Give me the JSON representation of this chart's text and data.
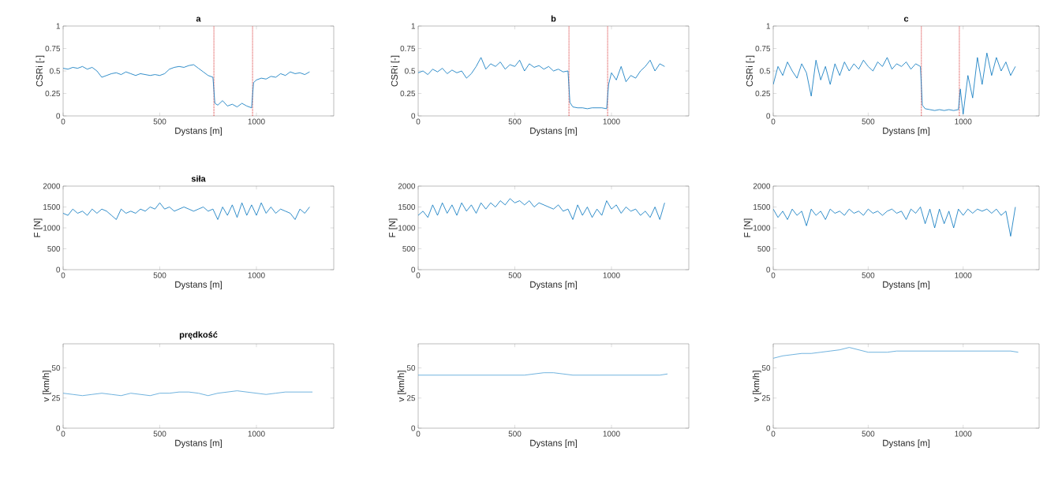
{
  "chart_data": [
    {
      "type": "line",
      "title": "a",
      "xlabel": "Dystans [m]",
      "ylabel": "CSRi [-]",
      "xlim": [
        0,
        1400
      ],
      "ylim": [
        0,
        1
      ],
      "xticks": [
        0,
        500,
        1000
      ],
      "yticks": [
        0,
        0.25,
        0.5,
        0.75,
        1
      ],
      "x": [
        0,
        25,
        50,
        75,
        100,
        125,
        150,
        175,
        200,
        225,
        250,
        275,
        300,
        325,
        350,
        375,
        400,
        425,
        450,
        475,
        500,
        525,
        550,
        575,
        600,
        625,
        650,
        675,
        700,
        725,
        750,
        775,
        785,
        800,
        825,
        850,
        875,
        900,
        925,
        950,
        975,
        985,
        1000,
        1025,
        1050,
        1075,
        1100,
        1125,
        1150,
        1175,
        1200,
        1225,
        1250,
        1275
      ],
      "series": [
        {
          "color": "#0072bd",
          "values": [
            0.53,
            0.52,
            0.54,
            0.53,
            0.55,
            0.52,
            0.54,
            0.5,
            0.43,
            0.45,
            0.47,
            0.48,
            0.46,
            0.49,
            0.47,
            0.45,
            0.47,
            0.46,
            0.45,
            0.46,
            0.45,
            0.47,
            0.52,
            0.54,
            0.55,
            0.54,
            0.56,
            0.57,
            0.53,
            0.49,
            0.45,
            0.43,
            0.14,
            0.12,
            0.17,
            0.11,
            0.13,
            0.1,
            0.14,
            0.11,
            0.09,
            0.37,
            0.4,
            0.42,
            0.41,
            0.44,
            0.43,
            0.47,
            0.45,
            0.49,
            0.47,
            0.48,
            0.46,
            0.49
          ]
        }
      ],
      "ref_lines": [
        {
          "axis": "x",
          "value": 780,
          "color": "#d62728",
          "line_style": "dotted"
        },
        {
          "axis": "x",
          "value": 980,
          "color": "#d62728",
          "line_style": "dotted"
        }
      ]
    },
    {
      "type": "line",
      "title": "b",
      "xlabel": "Dystans [m]",
      "ylabel": "CSRi [-]",
      "xlim": [
        0,
        1400
      ],
      "ylim": [
        0,
        1
      ],
      "xticks": [
        0,
        500,
        1000
      ],
      "yticks": [
        0,
        0.25,
        0.5,
        0.75,
        1
      ],
      "x": [
        0,
        25,
        50,
        75,
        100,
        125,
        150,
        175,
        200,
        225,
        250,
        275,
        300,
        325,
        350,
        375,
        400,
        425,
        450,
        475,
        500,
        525,
        550,
        575,
        600,
        625,
        650,
        675,
        700,
        725,
        750,
        775,
        785,
        800,
        825,
        850,
        875,
        900,
        925,
        950,
        975,
        985,
        1000,
        1025,
        1050,
        1075,
        1100,
        1125,
        1150,
        1175,
        1200,
        1225,
        1250,
        1275
      ],
      "series": [
        {
          "color": "#0072bd",
          "values": [
            0.48,
            0.5,
            0.46,
            0.52,
            0.49,
            0.53,
            0.47,
            0.51,
            0.48,
            0.5,
            0.42,
            0.47,
            0.55,
            0.65,
            0.52,
            0.58,
            0.55,
            0.6,
            0.52,
            0.57,
            0.55,
            0.62,
            0.5,
            0.58,
            0.54,
            0.56,
            0.52,
            0.55,
            0.5,
            0.52,
            0.49,
            0.5,
            0.15,
            0.1,
            0.09,
            0.09,
            0.08,
            0.09,
            0.09,
            0.09,
            0.08,
            0.35,
            0.48,
            0.4,
            0.55,
            0.38,
            0.45,
            0.42,
            0.5,
            0.55,
            0.62,
            0.5,
            0.58,
            0.55
          ]
        }
      ],
      "ref_lines": [
        {
          "axis": "x",
          "value": 780,
          "color": "#d62728",
          "line_style": "dotted"
        },
        {
          "axis": "x",
          "value": 980,
          "color": "#d62728",
          "line_style": "dotted"
        }
      ]
    },
    {
      "type": "line",
      "title": "c",
      "xlabel": "Dystans [m]",
      "ylabel": "CSRi [-]",
      "xlim": [
        0,
        1400
      ],
      "ylim": [
        0,
        1
      ],
      "xticks": [
        0,
        500,
        1000
      ],
      "yticks": [
        0,
        0.25,
        0.5,
        0.75,
        1
      ],
      "x": [
        0,
        25,
        50,
        75,
        100,
        125,
        150,
        175,
        200,
        225,
        250,
        275,
        300,
        325,
        350,
        375,
        400,
        425,
        450,
        475,
        500,
        525,
        550,
        575,
        600,
        625,
        650,
        675,
        700,
        725,
        750,
        775,
        785,
        800,
        825,
        850,
        875,
        900,
        925,
        950,
        975,
        985,
        1000,
        1025,
        1050,
        1075,
        1100,
        1125,
        1150,
        1175,
        1200,
        1225,
        1250,
        1275
      ],
      "series": [
        {
          "color": "#0072bd",
          "values": [
            0.35,
            0.55,
            0.45,
            0.6,
            0.5,
            0.42,
            0.58,
            0.48,
            0.22,
            0.62,
            0.4,
            0.55,
            0.35,
            0.58,
            0.45,
            0.6,
            0.5,
            0.58,
            0.52,
            0.62,
            0.55,
            0.5,
            0.6,
            0.55,
            0.65,
            0.52,
            0.58,
            0.55,
            0.6,
            0.52,
            0.58,
            0.55,
            0.12,
            0.08,
            0.07,
            0.06,
            0.07,
            0.06,
            0.07,
            0.06,
            0.07,
            0.3,
            0.02,
            0.45,
            0.2,
            0.65,
            0.35,
            0.7,
            0.45,
            0.65,
            0.5,
            0.6,
            0.45,
            0.55
          ]
        }
      ],
      "ref_lines": [
        {
          "axis": "x",
          "value": 780,
          "color": "#d62728",
          "line_style": "dotted"
        },
        {
          "axis": "x",
          "value": 980,
          "color": "#d62728",
          "line_style": "dotted"
        }
      ]
    },
    {
      "type": "line",
      "title": "siła",
      "xlabel": "Dystans [m]",
      "ylabel": "F [N]",
      "xlim": [
        0,
        1400
      ],
      "ylim": [
        0,
        2000
      ],
      "xticks": [
        0,
        500,
        1000
      ],
      "yticks": [
        0,
        500,
        1000,
        1500,
        2000
      ],
      "x": [
        0,
        25,
        50,
        75,
        100,
        125,
        150,
        175,
        200,
        225,
        250,
        275,
        300,
        325,
        350,
        375,
        400,
        425,
        450,
        475,
        500,
        525,
        550,
        575,
        600,
        625,
        650,
        675,
        700,
        725,
        750,
        775,
        800,
        825,
        850,
        875,
        900,
        925,
        950,
        975,
        1000,
        1025,
        1050,
        1075,
        1100,
        1125,
        1150,
        1175,
        1200,
        1225,
        1250,
        1275
      ],
      "series": [
        {
          "color": "#0072bd",
          "values": [
            1350,
            1300,
            1450,
            1350,
            1400,
            1300,
            1450,
            1350,
            1450,
            1400,
            1300,
            1200,
            1450,
            1350,
            1400,
            1350,
            1450,
            1400,
            1500,
            1450,
            1600,
            1450,
            1500,
            1400,
            1450,
            1500,
            1450,
            1400,
            1450,
            1500,
            1400,
            1450,
            1200,
            1500,
            1300,
            1550,
            1250,
            1600,
            1300,
            1550,
            1300,
            1600,
            1350,
            1500,
            1350,
            1450,
            1400,
            1350,
            1200,
            1450,
            1350,
            1500
          ]
        }
      ]
    },
    {
      "type": "line",
      "xlabel": "Dystans [m]",
      "ylabel": "F [N]",
      "xlim": [
        0,
        1400
      ],
      "ylim": [
        0,
        2000
      ],
      "xticks": [
        0,
        500,
        1000
      ],
      "yticks": [
        0,
        500,
        1000,
        1500,
        2000
      ],
      "x": [
        0,
        25,
        50,
        75,
        100,
        125,
        150,
        175,
        200,
        225,
        250,
        275,
        300,
        325,
        350,
        375,
        400,
        425,
        450,
        475,
        500,
        525,
        550,
        575,
        600,
        625,
        650,
        675,
        700,
        725,
        750,
        775,
        800,
        825,
        850,
        875,
        900,
        925,
        950,
        975,
        1000,
        1025,
        1050,
        1075,
        1100,
        1125,
        1150,
        1175,
        1200,
        1225,
        1250,
        1275
      ],
      "series": [
        {
          "color": "#0072bd",
          "values": [
            1300,
            1400,
            1250,
            1550,
            1300,
            1600,
            1350,
            1550,
            1300,
            1600,
            1400,
            1550,
            1350,
            1600,
            1450,
            1600,
            1500,
            1650,
            1550,
            1700,
            1600,
            1650,
            1550,
            1650,
            1500,
            1600,
            1550,
            1500,
            1450,
            1550,
            1400,
            1450,
            1200,
            1550,
            1300,
            1500,
            1250,
            1450,
            1300,
            1650,
            1450,
            1550,
            1350,
            1500,
            1400,
            1450,
            1300,
            1400,
            1250,
            1500,
            1200,
            1600
          ]
        }
      ]
    },
    {
      "type": "line",
      "xlabel": "Dystans [m]",
      "ylabel": "F [N]",
      "xlim": [
        0,
        1400
      ],
      "ylim": [
        0,
        2000
      ],
      "xticks": [
        0,
        500,
        1000
      ],
      "yticks": [
        0,
        500,
        1000,
        1500,
        2000
      ],
      "x": [
        0,
        25,
        50,
        75,
        100,
        125,
        150,
        175,
        200,
        225,
        250,
        275,
        300,
        325,
        350,
        375,
        400,
        425,
        450,
        475,
        500,
        525,
        550,
        575,
        600,
        625,
        650,
        675,
        700,
        725,
        750,
        775,
        800,
        825,
        850,
        875,
        900,
        925,
        950,
        975,
        1000,
        1025,
        1050,
        1075,
        1100,
        1125,
        1150,
        1175,
        1200,
        1225,
        1250,
        1275
      ],
      "series": [
        {
          "color": "#0072bd",
          "values": [
            1450,
            1250,
            1400,
            1200,
            1450,
            1300,
            1400,
            1050,
            1450,
            1300,
            1400,
            1200,
            1450,
            1350,
            1400,
            1300,
            1450,
            1350,
            1400,
            1300,
            1450,
            1350,
            1400,
            1300,
            1400,
            1450,
            1350,
            1400,
            1200,
            1450,
            1350,
            1500,
            1100,
            1450,
            1000,
            1450,
            1100,
            1400,
            1000,
            1450,
            1300,
            1450,
            1350,
            1450,
            1400,
            1450,
            1350,
            1450,
            1300,
            1400,
            800,
            1500
          ]
        }
      ]
    },
    {
      "type": "line",
      "title": "prędkość",
      "xlabel": "Dystans [m]",
      "ylabel": "v [km/h]",
      "xlim": [
        0,
        1400
      ],
      "ylim": [
        0,
        70
      ],
      "xticks": [
        0,
        500,
        1000
      ],
      "yticks": [
        0,
        25,
        50
      ],
      "x": [
        0,
        50,
        100,
        150,
        200,
        250,
        300,
        350,
        400,
        450,
        500,
        550,
        600,
        650,
        700,
        750,
        800,
        850,
        900,
        950,
        1000,
        1050,
        1100,
        1150,
        1200,
        1250,
        1290
      ],
      "series": [
        {
          "color": "#4d9fd6",
          "values": [
            29,
            28,
            27,
            28,
            29,
            28,
            27,
            29,
            28,
            27,
            29,
            29,
            30,
            30,
            29,
            27,
            29,
            30,
            31,
            30,
            29,
            28,
            29,
            30,
            30,
            30,
            30
          ]
        }
      ]
    },
    {
      "type": "line",
      "xlabel": "Dystans [m]",
      "ylabel": "v [km/h]",
      "xlim": [
        0,
        1400
      ],
      "ylim": [
        0,
        70
      ],
      "xticks": [
        0,
        500,
        1000
      ],
      "yticks": [
        0,
        25,
        50
      ],
      "x": [
        0,
        50,
        100,
        150,
        200,
        250,
        300,
        350,
        400,
        450,
        500,
        550,
        600,
        650,
        700,
        750,
        800,
        850,
        900,
        950,
        1000,
        1050,
        1100,
        1150,
        1200,
        1250,
        1290
      ],
      "series": [
        {
          "color": "#4d9fd6",
          "values": [
            44,
            44,
            44,
            44,
            44,
            44,
            44,
            44,
            44,
            44,
            44,
            44,
            45,
            46,
            46,
            45,
            44,
            44,
            44,
            44,
            44,
            44,
            44,
            44,
            44,
            44,
            45
          ]
        }
      ]
    },
    {
      "type": "line",
      "xlabel": "Dystans [m]",
      "ylabel": "v [km/h]",
      "xlim": [
        0,
        1400
      ],
      "ylim": [
        0,
        70
      ],
      "xticks": [
        0,
        500,
        1000
      ],
      "yticks": [
        0,
        25,
        50
      ],
      "x": [
        0,
        50,
        100,
        150,
        200,
        250,
        300,
        350,
        400,
        450,
        500,
        550,
        600,
        650,
        700,
        750,
        800,
        850,
        900,
        950,
        1000,
        1050,
        1100,
        1150,
        1200,
        1250,
        1290
      ],
      "series": [
        {
          "color": "#4d9fd6",
          "values": [
            58,
            60,
            61,
            62,
            62,
            63,
            64,
            65,
            67,
            65,
            63,
            63,
            63,
            64,
            64,
            64,
            64,
            64,
            64,
            64,
            64,
            64,
            64,
            64,
            64,
            64,
            63
          ]
        }
      ]
    }
  ]
}
